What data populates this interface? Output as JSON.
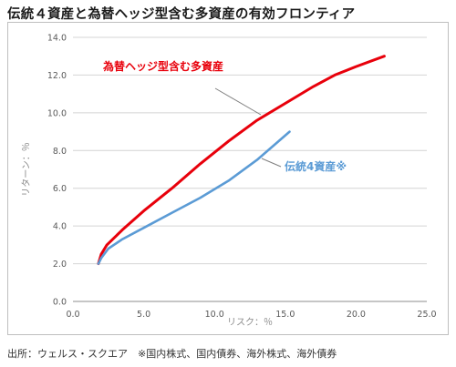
{
  "title": "伝統４資産と為替ヘッジ型含む多資産の有効フロンティア",
  "source_note": "出所：ウェルス・スクエア　※国内株式、国内債券、海外株式、海外債券",
  "chart_data": {
    "type": "line",
    "xlabel": "リスク：％",
    "ylabel": "リターン：％",
    "xlim": [
      0,
      25
    ],
    "ylim": [
      0,
      14
    ],
    "x_ticks": [
      "0.0",
      "5.0",
      "10.0",
      "15.0",
      "20.0",
      "25.0"
    ],
    "y_ticks": [
      "0.0",
      "2.0",
      "4.0",
      "6.0",
      "8.0",
      "10.0",
      "12.0",
      "14.0"
    ],
    "grid": "horizontal",
    "series": [
      {
        "name": "為替ヘッジ型含む多資産",
        "color": "#e8000b",
        "points": [
          [
            1.8,
            2.0
          ],
          [
            2.0,
            2.5
          ],
          [
            2.4,
            3.0
          ],
          [
            3.5,
            3.8
          ],
          [
            5.0,
            4.8
          ],
          [
            7.0,
            6.0
          ],
          [
            9.0,
            7.3
          ],
          [
            11.0,
            8.5
          ],
          [
            13.0,
            9.6
          ],
          [
            15.0,
            10.5
          ],
          [
            17.0,
            11.4
          ],
          [
            18.5,
            12.0
          ],
          [
            20.0,
            12.45
          ],
          [
            22.0,
            13.0
          ]
        ]
      },
      {
        "name": "伝統4資産※",
        "color": "#5b9bd5",
        "points": [
          [
            1.8,
            2.0
          ],
          [
            2.0,
            2.3
          ],
          [
            2.5,
            2.8
          ],
          [
            3.5,
            3.3
          ],
          [
            5.0,
            3.9
          ],
          [
            7.0,
            4.7
          ],
          [
            9.0,
            5.5
          ],
          [
            11.0,
            6.4
          ],
          [
            13.0,
            7.5
          ],
          [
            15.3,
            9.0
          ]
        ]
      }
    ]
  }
}
